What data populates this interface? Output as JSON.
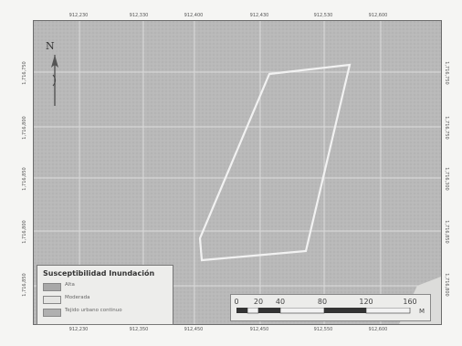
{
  "map": {
    "x_labels": [
      "912,230",
      "912,330",
      "912,400",
      "912,430",
      "912,530",
      "912,600"
    ],
    "x_labels_bottom": [
      "912,230",
      "912,350",
      "912,450",
      "912,450",
      "912,550",
      "912,600"
    ],
    "y_labels_left": [
      "1,716,750",
      "1,716,800",
      "1,716,850",
      "1,716,800",
      "1,716,850"
    ],
    "y_labels_right": [
      "1,716,750",
      "1,716,750",
      "1,716,300",
      "1,716,850",
      "1,716,800"
    ],
    "north_label": "N",
    "colors": {
      "map_background": "#b9b9b9",
      "grid": "#d9d9d9",
      "polygon_outline": "#f2f2f2",
      "frame": "#6c6c6c"
    }
  },
  "legend": {
    "title": "Susceptibilidad Inundación",
    "items": [
      {
        "label": "Alta",
        "color": "#a8a8a8"
      },
      {
        "label": "Moderada",
        "color": "#e4e4e2"
      },
      {
        "label": "Tejido urbano continuo",
        "color": "#b0b0b0"
      }
    ]
  },
  "scale": {
    "ticks": [
      "0",
      "20",
      "40",
      "80",
      "120",
      "160"
    ],
    "unit": "M"
  }
}
